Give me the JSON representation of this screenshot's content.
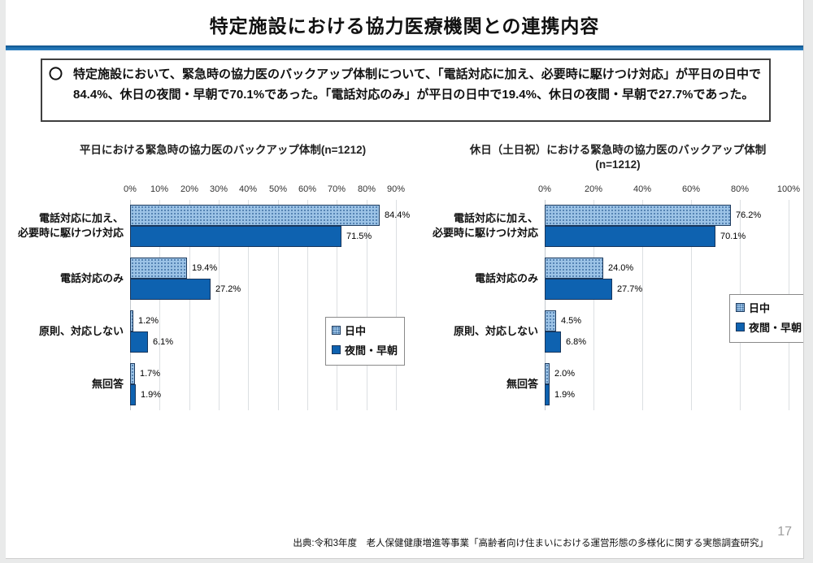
{
  "header": {
    "title": "特定施設における協力医療機関との連携内容"
  },
  "summary": {
    "bullet": "〇",
    "text": "特定施設において、緊急時の協力医のバックアップ体制について、「電話対応に加え、必要時に駆けつけ対応」が平日の日中で84.4%、休日の夜間・早朝で70.1%であった。「電話対応のみ」が平日の日中で19.4%、休日の夜間・早朝で27.7%であった。"
  },
  "footer": {
    "source": "出典:令和3年度　老人保健健康増進等事業「高齢者向け住まいにおける運営形態の多様化に関する実態調査研究」",
    "page_number": "17"
  },
  "colors": {
    "day_fill": "#9CC3E6",
    "day_dot": "#3E6FA3",
    "night_fill": "#0E62B0",
    "bar_border": "#1C3A5E",
    "title_rule": "#1E6FAE",
    "gridline": "#DCDFE2"
  },
  "chart_data": [
    {
      "type": "bar",
      "orientation": "horizontal",
      "title": "平日における緊急時の協力医のバックアップ体制(n=1212)",
      "subtitle": "",
      "n": 1212,
      "categories": [
        "電話対応に加え、必要時に駆けつけ対応",
        "電話対応のみ",
        "原則、対応しない",
        "無回答"
      ],
      "category_lines": [
        [
          "電話対応に加え、",
          "必要時に駆けつけ対応"
        ],
        [
          "電話対応のみ"
        ],
        [
          "原則、対応しない"
        ],
        [
          "無回答"
        ]
      ],
      "series": [
        {
          "name": "日中",
          "values": [
            84.4,
            19.4,
            1.2,
            1.7
          ]
        },
        {
          "name": "夜間・早朝",
          "values": [
            71.5,
            27.2,
            6.1,
            1.9
          ]
        }
      ],
      "value_labels": [
        [
          "84.4%",
          "19.4%",
          "1.2%",
          "1.7%"
        ],
        [
          "71.5%",
          "27.2%",
          "6.1%",
          "1.9%"
        ]
      ],
      "xlim": [
        0,
        90
      ],
      "ticks": [
        "0%",
        "10%",
        "20%",
        "30%",
        "40%",
        "50%",
        "60%",
        "70%",
        "80%",
        "90%"
      ],
      "grid": true,
      "legend_position": "right-inside"
    },
    {
      "type": "bar",
      "orientation": "horizontal",
      "title": "休日（土日祝）における緊急時の協力医のバックアップ体制",
      "subtitle": "(n=1212)",
      "n": 1212,
      "categories": [
        "電話対応に加え、必要時に駆けつけ対応",
        "電話対応のみ",
        "原則、対応しない",
        "無回答"
      ],
      "category_lines": [
        [
          "電話対応に加え、",
          "必要時に駆けつけ対応"
        ],
        [
          "電話対応のみ"
        ],
        [
          "原則、対応しない"
        ],
        [
          "無回答"
        ]
      ],
      "series": [
        {
          "name": "日中",
          "values": [
            76.2,
            24.0,
            4.5,
            2.0
          ]
        },
        {
          "name": "夜間・早朝",
          "values": [
            70.1,
            27.7,
            6.8,
            1.9
          ]
        }
      ],
      "value_labels": [
        [
          "76.2%",
          "24.0%",
          "4.5%",
          "2.0%"
        ],
        [
          "70.1%",
          "27.7%",
          "6.8%",
          "1.9%"
        ]
      ],
      "xlim": [
        0,
        100
      ],
      "ticks": [
        "0%",
        "20%",
        "40%",
        "60%",
        "80%",
        "100%"
      ],
      "grid": true,
      "legend_position": "right-inside"
    }
  ]
}
